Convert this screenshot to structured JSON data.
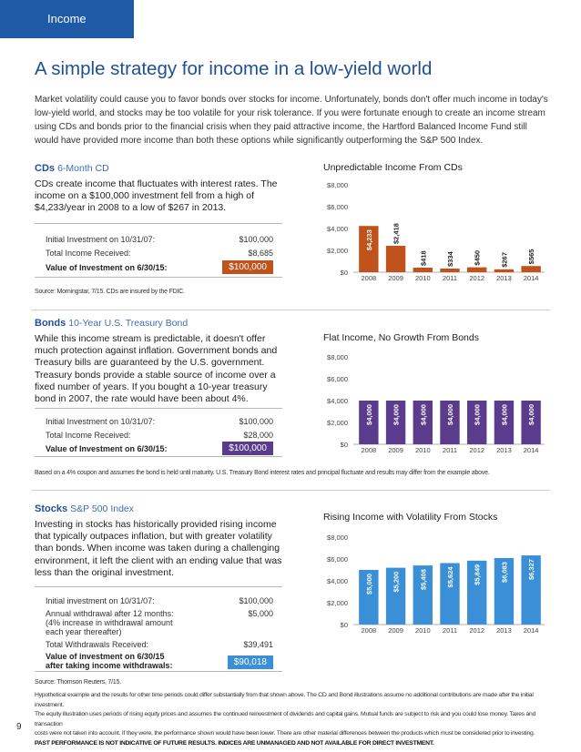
{
  "header": {
    "tab_label": "Income"
  },
  "page": {
    "title": "A simple strategy for income in a low-yield world",
    "intro": "Market volatility could cause you to favor bonds over stocks for income. Unfortunately, bonds don't offer much income in today's low-yield world, and stocks may be too volatile for your risk tolerance. If you were fortunate enough to create an income stream using CDs and bonds prior to the financial crisis when they paid attractive income, the Hartford Balanced Income Fund still would have provided more income than both these options while significantly outperforming the S&P 500 Index.",
    "page_number": "9"
  },
  "colors": {
    "cds": "#c0531b",
    "bonds": "#5b3b8c",
    "stocks": "#3a8fd6",
    "heading": "#1f4f96"
  },
  "cds": {
    "heading": "CDs",
    "subheading": "6-Month CD",
    "text": "CDs create income that fluctuates with interest rates. The income on a $100,000 investment fell from a high of $4,233/year in 2008 to a low of $267 in 2013.",
    "initial_label": "Initial Investment on 10/31/07:",
    "initial_value": "$100,000",
    "income_label": "Total Income Received:",
    "income_value": "$8,685",
    "final_label": "Value of Investment on 6/30/15:",
    "final_value": "$100,000",
    "source": "Source: Morningstar, 7/15. CDs are insured by the FDIC."
  },
  "bonds": {
    "heading": "Bonds",
    "subheading": "10-Year U.S. Treasury Bond",
    "text": "While this income stream is predictable, it doesn't offer much protection against inflation. Government bonds and Treasury bills are guaranteed by the U.S. government. Treasury bonds provide a stable source of income over a fixed number of years. If you bought a 10-year treasury bond in 2007, the rate would have been about 4%.",
    "initial_label": "Initial Investment on 10/31/07:",
    "initial_value": "$100,000",
    "income_label": "Total Income Received:",
    "income_value": "$28,000",
    "final_label": "Value of Investment on 6/30/15:",
    "final_value": "$100,000",
    "note": "Based on a 4% coupon and assumes the bond is held until maturity. U.S. Treasury Bond interest rates and principal fluctuate and results may differ from the example above."
  },
  "stocks": {
    "heading": "Stocks",
    "subheading": "S&P 500 Index",
    "text": "Investing in stocks has historically provided rising income that typically outpaces inflation, but with greater volatility than bonds. When income was taken during a challenging environment, it left the client with an ending value that was less than the original investment.",
    "initial_label": "Initial investment on 10/31/07:",
    "initial_value": "$100,000",
    "withdrawal_label_1": "Annual withdrawal after 12 months:",
    "withdrawal_label_2": "(4% increase in withdrawal amount",
    "withdrawal_label_3": "each year thereafter)",
    "withdrawal_value": "$5,000",
    "total_label": "Total Withdrawals Received:",
    "total_value": "$39,491",
    "final_label_1": "Value of investment on 6/30/15",
    "final_label_2": "after taking income withdrawals:",
    "final_value": "$90,018",
    "source": "Source: Thomson Reuters, 7/15."
  },
  "disclaimer": {
    "lines": [
      "Hypothetical example and the results for other time periods could differ substantially from that shown above. The CD and Bond illustrations assume no additional contributions are made after the initial investment.",
      "The equity illustration uses periods of rising equity prices and assumes the continued reinvestment of dividends and capital gains. Mutual funds are subject to risk and you could lose money. Taxes and transaction",
      "costs were not taken into account. If they were, the performance shown would have been lower. There are other material differences between the products which must be considered prior to investing."
    ],
    "bold_line": "PAST PERFORMANCE IS NOT INDICATIVE OF FUTURE RESULTS. INDICES ARE UNMANAGED AND NOT AVAILABLE FOR DIRECT INVESTMENT."
  },
  "chart_data": [
    {
      "type": "bar",
      "title": "Unpredictable Income From CDs",
      "categories": [
        "2008",
        "2009",
        "2010",
        "2011",
        "2012",
        "2013",
        "2014"
      ],
      "values": [
        4233,
        2418,
        418,
        334,
        450,
        267,
        565
      ],
      "data_labels": [
        "$4,233",
        "$2,418",
        "$418",
        "$334",
        "$450",
        "$267",
        "$565"
      ],
      "ylim": [
        0,
        8000
      ],
      "yticks": [
        "$0",
        "$2,000",
        "$4,000",
        "$6,000",
        "$8,000"
      ],
      "color": "#c0531b",
      "grid": false
    },
    {
      "type": "bar",
      "title": "Flat Income, No Growth From Bonds",
      "categories": [
        "2008",
        "2009",
        "2010",
        "2011",
        "2012",
        "2013",
        "2014"
      ],
      "values": [
        4000,
        4000,
        4000,
        4000,
        4000,
        4000,
        4000
      ],
      "data_labels": [
        "$4,000",
        "$4,000",
        "$4,000",
        "$4,000",
        "$4,000",
        "$4,000",
        "$4,000"
      ],
      "ylim": [
        0,
        8000
      ],
      "yticks": [
        "$0",
        "$2,000",
        "$4,000",
        "$6,000",
        "$8,000"
      ],
      "color": "#5b3b8c",
      "grid": false
    },
    {
      "type": "bar",
      "title": "Rising Income with Volatility From Stocks",
      "categories": [
        "2008",
        "2009",
        "2010",
        "2011",
        "2012",
        "2013",
        "2014"
      ],
      "values": [
        5000,
        5200,
        5408,
        5624,
        5849,
        6083,
        6327
      ],
      "data_labels": [
        "$5,000",
        "$5,200",
        "$5,408",
        "$5,624",
        "$5,849",
        "$6,083",
        "$6,327"
      ],
      "ylim": [
        0,
        8000
      ],
      "yticks": [
        "$0",
        "$2,000",
        "$4,000",
        "$6,000",
        "$8,000"
      ],
      "color": "#3a8fd6",
      "grid": false
    }
  ]
}
